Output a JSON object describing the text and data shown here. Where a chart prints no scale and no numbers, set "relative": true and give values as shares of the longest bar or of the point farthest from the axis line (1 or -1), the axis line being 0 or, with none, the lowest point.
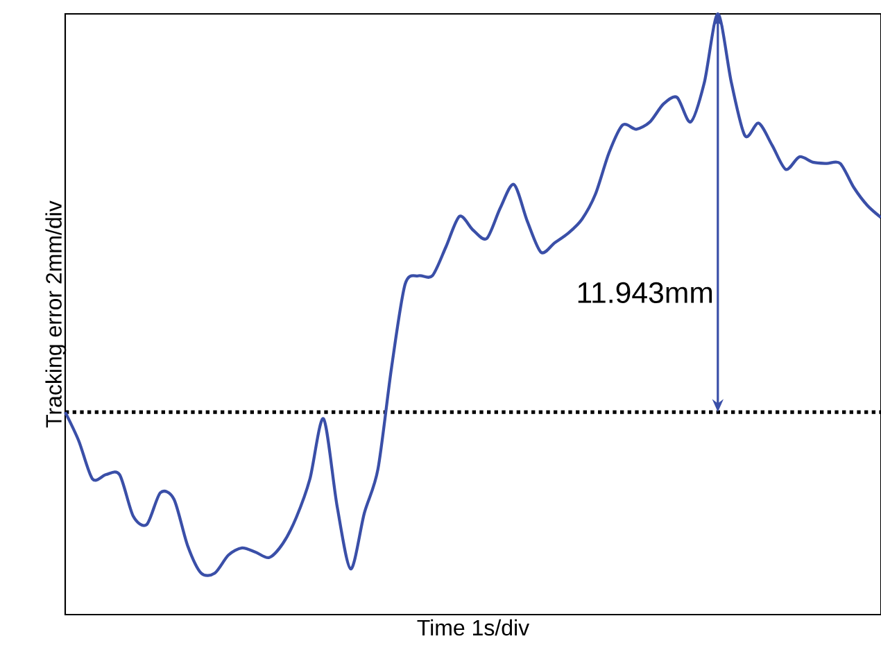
{
  "chart_data": {
    "type": "line",
    "xlabel": "Time 1s/div",
    "ylabel": "Tracking error 2mm/div",
    "relative": true,
    "categories": [
      null,
      null,
      null,
      null,
      null,
      null,
      null,
      null,
      null,
      null,
      null,
      null,
      null,
      null,
      null,
      null,
      null,
      null,
      null,
      null,
      null,
      null,
      null,
      null,
      null,
      null,
      null,
      null,
      null,
      null,
      null,
      null,
      null,
      null,
      null,
      null,
      null,
      null,
      null,
      null,
      null,
      null,
      null,
      null,
      null,
      null,
      null,
      null,
      null,
      null,
      null,
      null,
      null,
      null,
      null,
      null,
      null,
      null,
      null,
      null,
      null
    ],
    "series": [
      {
        "color": "#3a4fa8",
        "values": [
          0.337,
          0.289,
          0.226,
          0.233,
          0.233,
          0.164,
          0.15,
          0.203,
          0.192,
          0.115,
          0.069,
          0.069,
          0.099,
          0.111,
          0.104,
          0.095,
          0.118,
          0.162,
          0.226,
          0.326,
          0.18,
          0.076,
          0.169,
          0.242,
          0.411,
          0.55,
          0.564,
          0.564,
          0.612,
          0.663,
          0.64,
          0.626,
          0.677,
          0.716,
          0.654,
          0.603,
          0.619,
          0.635,
          0.658,
          0.7,
          0.769,
          0.815,
          0.808,
          0.82,
          0.85,
          0.861,
          0.82,
          0.885,
          1,
          0.885,
          0.797,
          0.818,
          0.781,
          0.741,
          0.762,
          0.753,
          0.751,
          0.751,
          0.711,
          0.681,
          0.661
        ]
      }
    ],
    "ref_lines": [
      {
        "axis": "y",
        "value": 0.337,
        "color": "#000000",
        "line_style": "dotted"
      }
    ],
    "annotations": [
      "11.943mm"
    ]
  }
}
